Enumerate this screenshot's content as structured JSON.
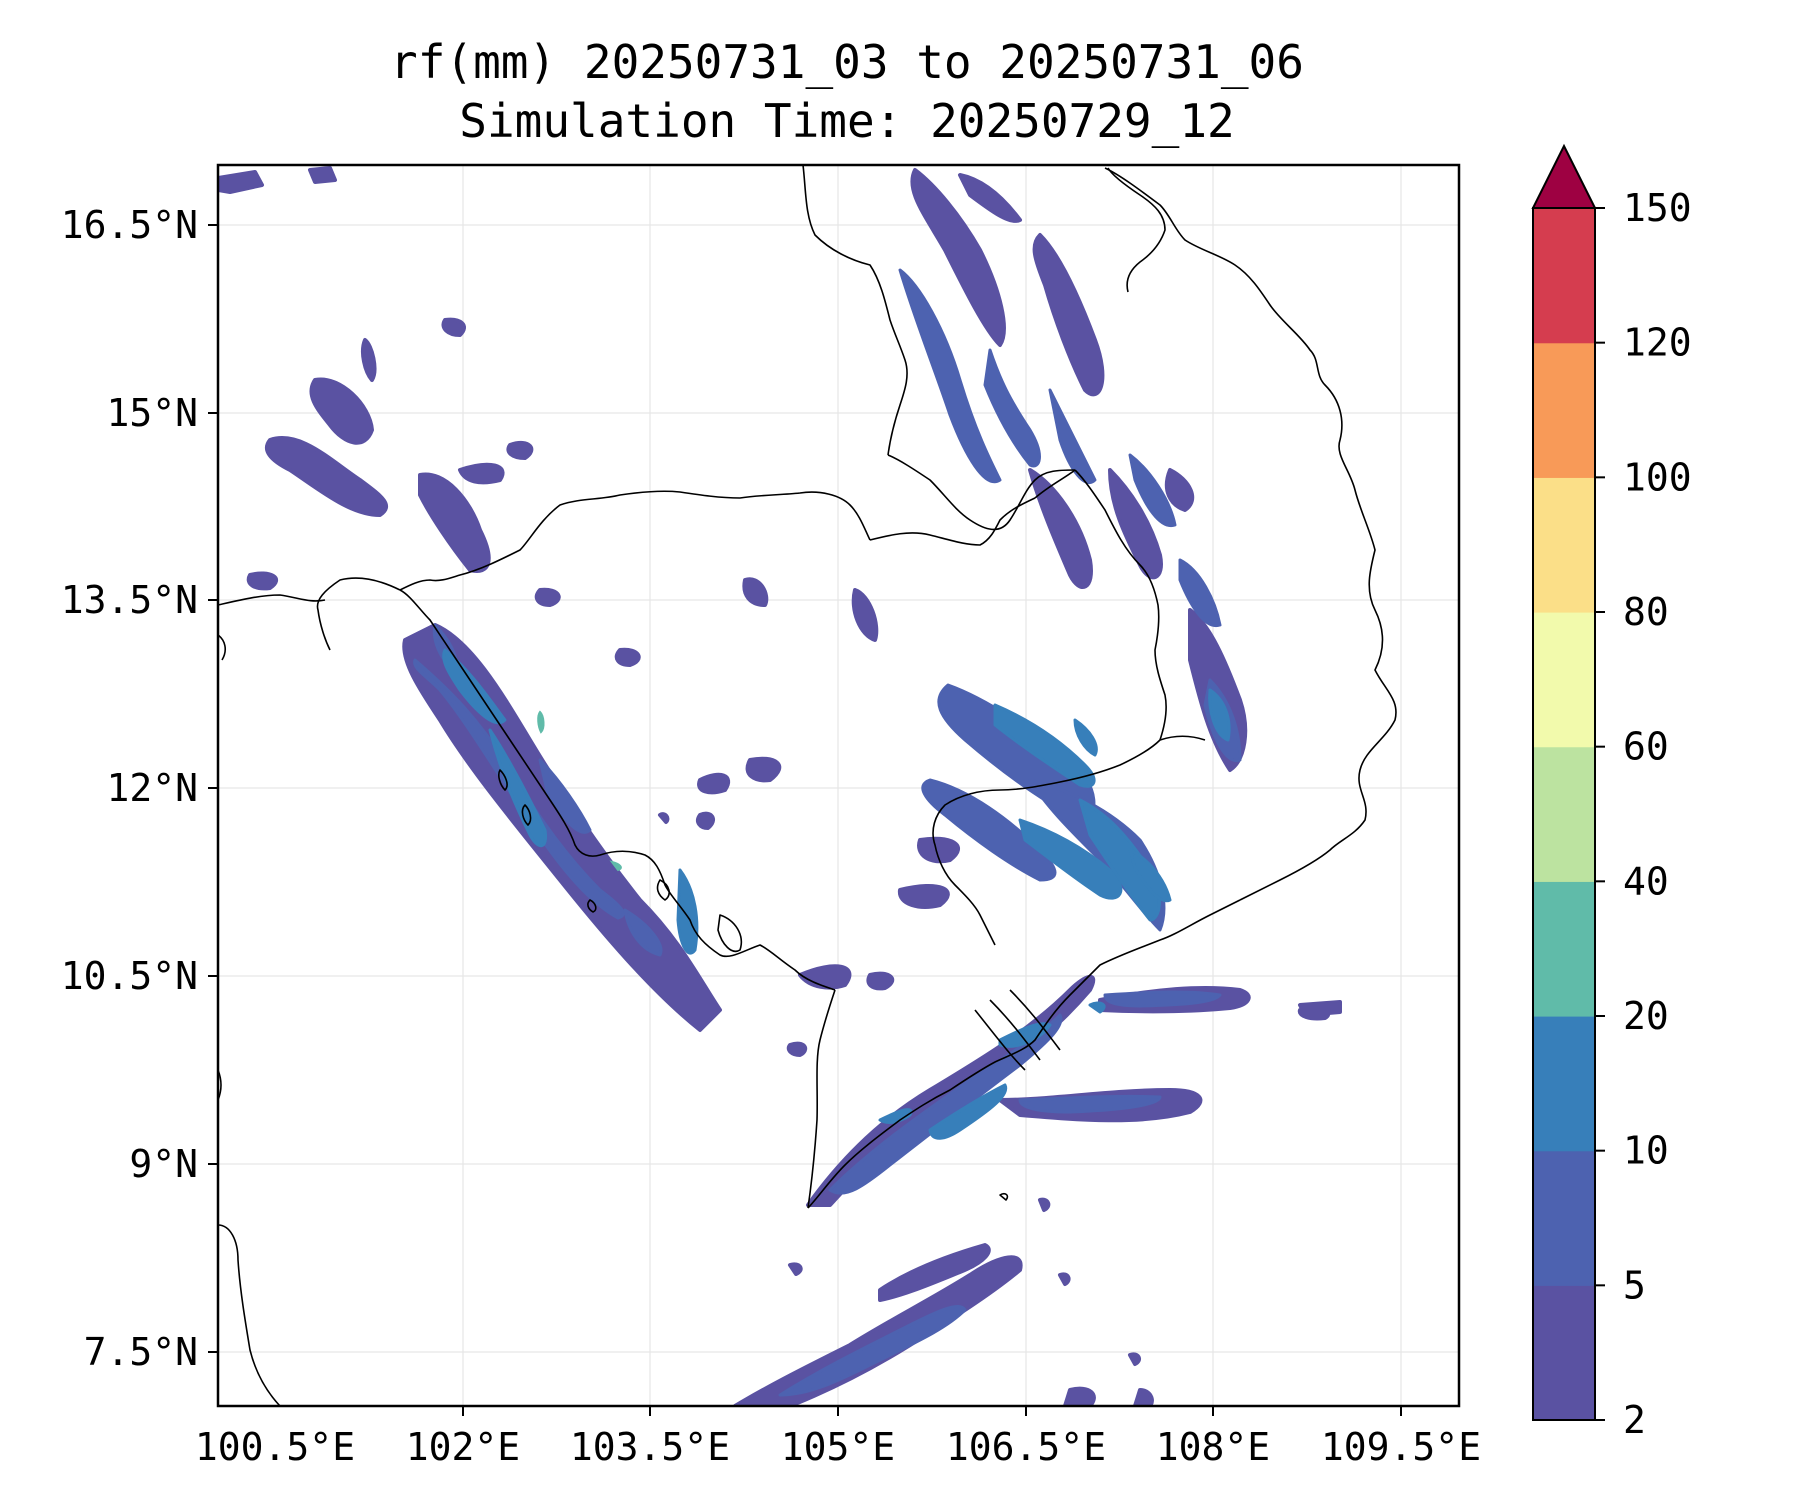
{
  "title_line1": "rf(mm) 20250731_03 to 20250731_06",
  "title_line2": "Simulation Time: 20250729_12",
  "x_ticks": [
    "100.5°E",
    "102°E",
    "103.5°E",
    "105°E",
    "106.5°E",
    "108°E",
    "109.5°E"
  ],
  "y_ticks": [
    "16.5°N",
    "15°N",
    "13.5°N",
    "12°N",
    "10.5°N",
    "9°N",
    "7.5°N"
  ],
  "colorbar": {
    "levels": [
      2,
      5,
      10,
      20,
      40,
      60,
      80,
      100,
      120,
      150
    ],
    "tick_labels": [
      "2",
      "5",
      "10",
      "20",
      "40",
      "60",
      "80",
      "100",
      "120",
      "150"
    ],
    "colors": [
      "#5a52a2",
      "#4d62b0",
      "#377fba",
      "#60bba9",
      "#bce3a0",
      "#f2faac",
      "#fbdf88",
      "#f89a58",
      "#d53d4f",
      "#9e0142"
    ],
    "extend": "max"
  },
  "map": {
    "lon_range": [
      100.0,
      109.9
    ],
    "lat_range": [
      7.0,
      17.0
    ],
    "grid": true,
    "colors": {
      "land_outline": "#000000",
      "grid": "#e6e6e6",
      "background": "#ffffff"
    }
  }
}
